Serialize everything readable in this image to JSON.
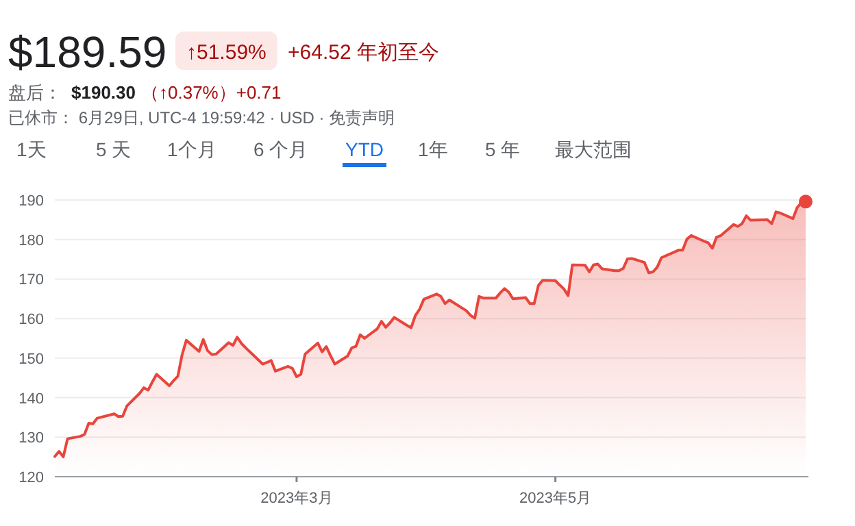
{
  "chart_data": {
    "type": "area",
    "title": "$189.59",
    "annotations": [
      "↑51.59%",
      "+64.52 年初至今",
      "盘后：",
      "$190.30",
      "（↑0.37%）+0.71",
      "已休市： 6月29日, UTC-4 19:59:42 · USD · 免责声明",
      "1天",
      "5 天",
      "1个月",
      "6 个月",
      "YTD",
      "1年",
      "5 年",
      "最大范围"
    ],
    "x": [
      "2023-01-03",
      "2023-01-04",
      "2023-01-05",
      "2023-01-06",
      "2023-01-09",
      "2023-01-10",
      "2023-01-11",
      "2023-01-12",
      "2023-01-13",
      "2023-01-17",
      "2023-01-18",
      "2023-01-19",
      "2023-01-20",
      "2023-01-23",
      "2023-01-24",
      "2023-01-25",
      "2023-01-26",
      "2023-01-27",
      "2023-01-30",
      "2023-01-31",
      "2023-02-01",
      "2023-02-02",
      "2023-02-03",
      "2023-02-06",
      "2023-02-07",
      "2023-02-08",
      "2023-02-09",
      "2023-02-10",
      "2023-02-13",
      "2023-02-14",
      "2023-02-15",
      "2023-02-16",
      "2023-02-17",
      "2023-02-21",
      "2023-02-22",
      "2023-02-23",
      "2023-02-24",
      "2023-02-27",
      "2023-02-28",
      "2023-03-01",
      "2023-03-02",
      "2023-03-03",
      "2023-03-06",
      "2023-03-07",
      "2023-03-08",
      "2023-03-09",
      "2023-03-10",
      "2023-03-13",
      "2023-03-14",
      "2023-03-15",
      "2023-03-16",
      "2023-03-17",
      "2023-03-20",
      "2023-03-21",
      "2023-03-22",
      "2023-03-23",
      "2023-03-24",
      "2023-03-27",
      "2023-03-28",
      "2023-03-29",
      "2023-03-30",
      "2023-03-31",
      "2023-04-03",
      "2023-04-04",
      "2023-04-05",
      "2023-04-06",
      "2023-04-10",
      "2023-04-11",
      "2023-04-12",
      "2023-04-13",
      "2023-04-14",
      "2023-04-17",
      "2023-04-18",
      "2023-04-19",
      "2023-04-20",
      "2023-04-21",
      "2023-04-24",
      "2023-04-25",
      "2023-04-26",
      "2023-04-27",
      "2023-04-28",
      "2023-05-01",
      "2023-05-02",
      "2023-05-03",
      "2023-05-04",
      "2023-05-05",
      "2023-05-08",
      "2023-05-09",
      "2023-05-10",
      "2023-05-11",
      "2023-05-12",
      "2023-05-15",
      "2023-05-16",
      "2023-05-17",
      "2023-05-18",
      "2023-05-19",
      "2023-05-22",
      "2023-05-23",
      "2023-05-24",
      "2023-05-25",
      "2023-05-26",
      "2023-05-30",
      "2023-05-31",
      "2023-06-01",
      "2023-06-02",
      "2023-06-05",
      "2023-06-06",
      "2023-06-07",
      "2023-06-08",
      "2023-06-09",
      "2023-06-12",
      "2023-06-13",
      "2023-06-14",
      "2023-06-15",
      "2023-06-16",
      "2023-06-20",
      "2023-06-21",
      "2023-06-22",
      "2023-06-23",
      "2023-06-26",
      "2023-06-27",
      "2023-06-28",
      "2023-06-29"
    ],
    "series": [
      {
        "color": "#e8453c",
        "values": [
          125.1,
          126.4,
          125.0,
          129.6,
          130.2,
          130.7,
          133.5,
          133.4,
          134.8,
          135.9,
          135.2,
          135.3,
          137.9,
          141.1,
          142.5,
          141.9,
          144.0,
          145.9,
          143.0,
          144.3,
          145.4,
          150.8,
          154.5,
          151.7,
          154.7,
          151.9,
          150.9,
          151.0,
          153.9,
          153.2,
          155.3,
          153.7,
          152.6,
          148.5,
          148.9,
          149.4,
          146.7,
          147.9,
          147.4,
          145.3,
          145.9,
          151.0,
          153.8,
          151.6,
          152.9,
          150.6,
          148.5,
          150.5,
          152.6,
          153.0,
          155.9,
          155.0,
          157.4,
          159.3,
          157.8,
          158.9,
          160.3,
          158.3,
          157.7,
          160.8,
          162.4,
          164.9,
          166.2,
          165.6,
          163.8,
          164.7,
          162.0,
          160.8,
          160.1,
          165.6,
          165.2,
          165.2,
          166.5,
          167.6,
          166.7,
          165.0,
          165.3,
          163.8,
          163.8,
          168.4,
          169.7,
          169.6,
          168.5,
          167.5,
          165.8,
          173.6,
          173.5,
          171.8,
          173.6,
          173.8,
          172.6,
          172.1,
          172.1,
          172.7,
          175.1,
          175.2,
          174.2,
          171.6,
          171.8,
          173.0,
          175.4,
          177.3,
          177.3,
          180.1,
          181.0,
          179.6,
          179.2,
          177.8,
          180.6,
          181.0,
          183.8,
          183.3,
          184.0,
          186.0,
          184.9,
          185.0,
          184.0,
          187.0,
          186.7,
          185.3,
          188.1,
          189.3,
          189.6
        ]
      },
      {
        "type": "scatter",
        "color": "#e8453c",
        "marker": "circle",
        "x": [
          "2023-06-29"
        ],
        "values": [
          189.6
        ]
      }
    ],
    "xlim": [
      "2023-01-03",
      "2023-06-29"
    ],
    "xticks": [
      {
        "value": "2023-03-01",
        "label": "2023年3月"
      },
      {
        "value": "2023-05-01",
        "label": "2023年5月"
      }
    ],
    "ylim": [
      120,
      190
    ],
    "yticks": [
      120,
      130,
      140,
      150,
      160,
      170,
      180,
      190
    ],
    "grid": "y"
  }
}
